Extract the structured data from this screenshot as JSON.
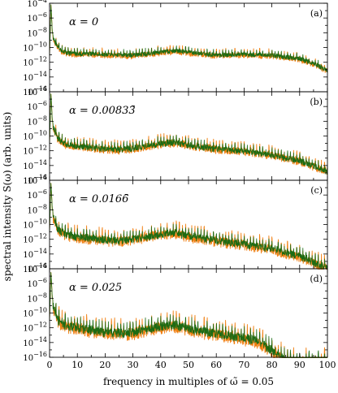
{
  "chart_data": {
    "type": "line",
    "ylabel": "spectral intensity S(ω) (arb. units)",
    "xlabel": "frequency in multiples of ω̃ = 0.05",
    "xlim": [
      0,
      100
    ],
    "xticks": [
      "0",
      "10",
      "20",
      "30",
      "40",
      "50",
      "60",
      "70",
      "80",
      "90",
      "100"
    ],
    "yscale": "log",
    "ylim": [
      1e-16,
      0.0001
    ],
    "ytick_exponents": [
      -4,
      -6,
      -8,
      -10,
      -12,
      -14,
      -16
    ],
    "series_colors": {
      "orange": "#f07f11",
      "green": "#1c6b14"
    },
    "panels": [
      {
        "label": "(a)",
        "alpha_text": "α = 0",
        "orange": {
          "x": [
            0,
            0.5,
            1,
            2,
            4,
            6,
            10,
            15,
            20,
            30,
            40,
            45,
            50,
            60,
            70,
            80,
            90,
            95,
            100
          ],
          "y_log10": [
            -11,
            -4.2,
            -8,
            -9,
            -10,
            -10.4,
            -10.5,
            -10.5,
            -10.6,
            -10.7,
            -10.3,
            -10.1,
            -10.3,
            -10.7,
            -10.6,
            -10.7,
            -11.2,
            -11.8,
            -12.8
          ]
        },
        "green": {
          "x": [
            0,
            0.5,
            1,
            2,
            4,
            6,
            10,
            15,
            20,
            30,
            40,
            45,
            50,
            60,
            70,
            80,
            90,
            95,
            100
          ],
          "y_log10": [
            -11,
            -4.2,
            -8,
            -9,
            -10,
            -10.4,
            -10.5,
            -10.5,
            -10.6,
            -10.7,
            -10.3,
            -10.1,
            -10.3,
            -10.7,
            -10.6,
            -10.7,
            -11.2,
            -11.8,
            -12.8
          ]
        }
      },
      {
        "label": "(b)",
        "alpha_text": "α = 0.00833̄",
        "orange": {
          "x": [
            0,
            0.5,
            1,
            3,
            6,
            10,
            15,
            20,
            25,
            30,
            40,
            45,
            50,
            60,
            70,
            80,
            90,
            95,
            100
          ],
          "y_log10": [
            -11,
            -4.3,
            -8,
            -9.8,
            -10.6,
            -10.8,
            -11.0,
            -11.2,
            -11.3,
            -11.1,
            -10.5,
            -10.3,
            -10.7,
            -11.2,
            -11.5,
            -12.0,
            -12.8,
            -13.5,
            -14.2
          ]
        },
        "green": {
          "x": [
            0,
            0.5,
            1,
            3,
            6,
            10,
            15,
            20,
            25,
            30,
            40,
            45,
            50,
            60,
            70,
            80,
            90,
            95,
            100
          ],
          "y_log10": [
            -11,
            -4.3,
            -8,
            -9.9,
            -10.7,
            -10.9,
            -11.1,
            -11.3,
            -11.4,
            -11.2,
            -10.6,
            -10.4,
            -10.8,
            -11.3,
            -11.6,
            -12.1,
            -12.9,
            -13.6,
            -14.4
          ]
        }
      },
      {
        "label": "(c)",
        "alpha_text": "α = 0.0166̄",
        "orange": {
          "x": [
            0,
            0.5,
            1,
            3,
            6,
            10,
            15,
            20,
            25,
            30,
            40,
            45,
            50,
            60,
            70,
            80,
            90,
            95,
            100
          ],
          "y_log10": [
            -11,
            -4.4,
            -8,
            -10.0,
            -10.7,
            -11.0,
            -11.2,
            -11.4,
            -11.5,
            -11.3,
            -10.6,
            -10.4,
            -10.9,
            -11.5,
            -12.0,
            -12.6,
            -13.6,
            -14.4,
            -15.3
          ]
        },
        "green": {
          "x": [
            0,
            0.5,
            1,
            3,
            6,
            10,
            15,
            20,
            25,
            30,
            40,
            45,
            50,
            60,
            70,
            80,
            90,
            95,
            100
          ],
          "y_log10": [
            -11,
            -4.4,
            -8,
            -10.1,
            -10.8,
            -11.1,
            -11.3,
            -11.5,
            -11.6,
            -11.4,
            -10.8,
            -10.5,
            -11.0,
            -11.6,
            -12.1,
            -12.7,
            -13.7,
            -14.5,
            -15.4
          ]
        }
      },
      {
        "label": "(d)",
        "alpha_text": "α = 0.025",
        "orange": {
          "x": [
            0,
            0.5,
            1,
            3,
            6,
            10,
            15,
            20,
            25,
            30,
            40,
            45,
            50,
            60,
            70,
            75,
            80,
            85,
            90,
            100
          ],
          "y_log10": [
            -11,
            -4.5,
            -8,
            -10.2,
            -10.9,
            -11.2,
            -11.5,
            -11.8,
            -11.9,
            -11.8,
            -11.0,
            -10.8,
            -11.3,
            -12.0,
            -12.6,
            -13.0,
            -14.2,
            -15.6,
            -15.9,
            -15.9
          ]
        },
        "green": {
          "x": [
            0,
            0.5,
            1,
            3,
            6,
            10,
            15,
            20,
            25,
            30,
            40,
            45,
            50,
            60,
            70,
            75,
            80,
            85,
            90,
            100
          ],
          "y_log10": [
            -11,
            -4.5,
            -8,
            -10.3,
            -11.0,
            -11.3,
            -11.6,
            -11.9,
            -12.0,
            -11.9,
            -11.1,
            -10.9,
            -11.4,
            -12.1,
            -12.7,
            -13.1,
            -14.3,
            -15.7,
            -16.0,
            -16.0
          ]
        }
      }
    ]
  }
}
